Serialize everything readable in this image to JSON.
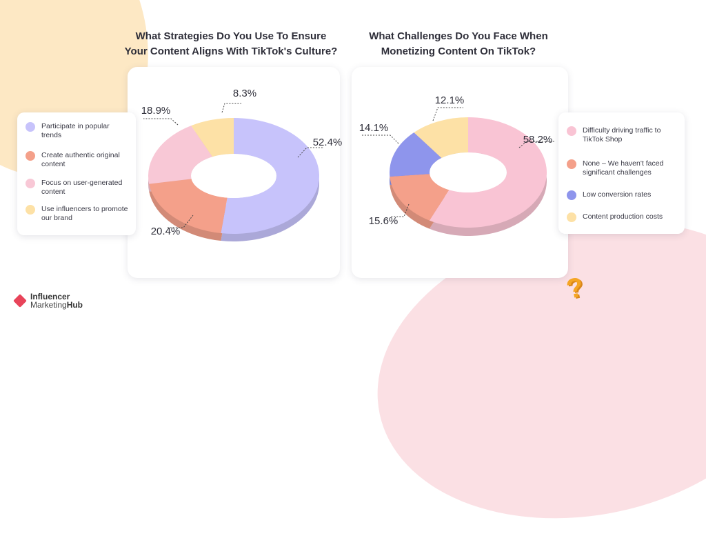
{
  "chart_data": [
    {
      "type": "pie",
      "title": "What Strategies Do You Use To Ensure Your Content Aligns With TikTok's Culture?",
      "categories": [
        "Participate in popular trends",
        "Create authentic original content",
        "Focus on user-generated content",
        "Use influencers to promote our brand"
      ],
      "values": [
        52.4,
        20.4,
        18.9,
        8.3
      ],
      "labels": [
        "52.4%",
        "20.4%",
        "18.9%",
        "8.3%"
      ],
      "colors": [
        "#c7c3fb",
        "#f4a08a",
        "#f8c8d6",
        "#fde1a6"
      ],
      "legend_placement": "left"
    },
    {
      "type": "pie",
      "title": "What Challenges Do You Face When Monetizing Content On TikTok?",
      "categories": [
        "Difficulty driving traffic to TikTok Shop",
        "None – We haven't faced significant challenges",
        "Low conversion rates",
        "Content production costs"
      ],
      "values": [
        58.2,
        15.6,
        14.1,
        12.1
      ],
      "labels": [
        "58.2%",
        "15.6%",
        "14.1%",
        "12.1%"
      ],
      "colors": [
        "#f9c4d4",
        "#f4a08a",
        "#8e95ec",
        "#fde1a6"
      ],
      "legend_placement": "right"
    }
  ],
  "brand": {
    "line1": "Influencer",
    "line2a": "Marketing",
    "line2b": "Hub"
  }
}
